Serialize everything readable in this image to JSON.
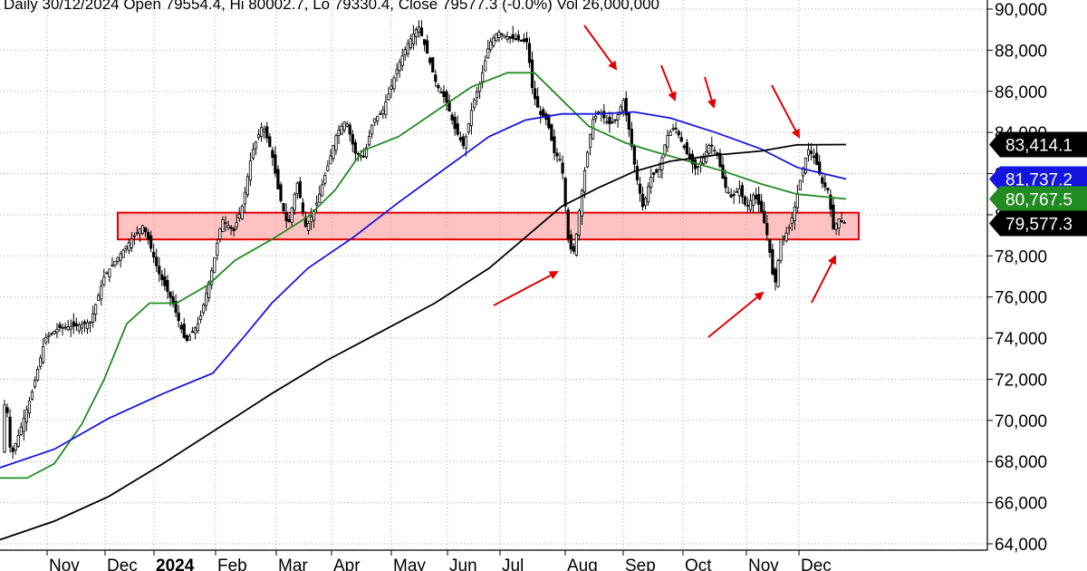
{
  "header": {
    "text": "Daily 30/12/2024 Open 79554.4, Hi 80002.7, Lo 79330.4, Close 79577.3 (-0.0%) Vol 26,000,000",
    "accent": "#008000"
  },
  "chart_data": {
    "type": "candlestick",
    "ylim": [
      63500,
      90500
    ],
    "y_ticks": [
      {
        "value": 64000,
        "label": "64,000"
      },
      {
        "value": 66000,
        "label": "66,000"
      },
      {
        "value": 68000,
        "label": "68,000"
      },
      {
        "value": 70000,
        "label": "70,000"
      },
      {
        "value": 72000,
        "label": "72,000"
      },
      {
        "value": 74000,
        "label": "74,000"
      },
      {
        "value": 76000,
        "label": "76,000"
      },
      {
        "value": 78000,
        "label": "78,000"
      },
      {
        "value": 80000,
        "label": "80,000"
      },
      {
        "value": 82000,
        "label": "82,000"
      },
      {
        "value": 84000,
        "label": "84,000"
      },
      {
        "value": 86000,
        "label": "86,000"
      },
      {
        "value": 88000,
        "label": "88,000"
      },
      {
        "value": 90000,
        "label": "90,000"
      }
    ],
    "x_ticks": [
      {
        "label": "Nov",
        "bold": false
      },
      {
        "label": "Dec",
        "bold": false
      },
      {
        "label": "2024",
        "bold": true
      },
      {
        "label": "Feb",
        "bold": false
      },
      {
        "label": "Mar",
        "bold": false
      },
      {
        "label": "Apr",
        "bold": false
      },
      {
        "label": "May",
        "bold": false
      },
      {
        "label": "Jun",
        "bold": false
      },
      {
        "label": "Jul",
        "bold": false
      },
      {
        "label": "Aug",
        "bold": false
      },
      {
        "label": "Sep",
        "bold": false
      },
      {
        "label": "Oct",
        "bold": false
      },
      {
        "label": "Nov",
        "bold": false
      },
      {
        "label": "Dec",
        "bold": false
      }
    ],
    "price_path": [
      [
        0,
        67000
      ],
      [
        6,
        71500
      ],
      [
        12,
        68200
      ],
      [
        22,
        69500
      ],
      [
        35,
        71300
      ],
      [
        50,
        74000
      ],
      [
        65,
        74500
      ],
      [
        85,
        74600
      ],
      [
        100,
        74800
      ],
      [
        115,
        77000
      ],
      [
        128,
        77800
      ],
      [
        145,
        78800
      ],
      [
        158,
        79500
      ],
      [
        165,
        78600
      ],
      [
        175,
        77200
      ],
      [
        190,
        75800
      ],
      [
        205,
        73800
      ],
      [
        220,
        74800
      ],
      [
        235,
        77500
      ],
      [
        245,
        79800
      ],
      [
        258,
        79200
      ],
      [
        268,
        80500
      ],
      [
        278,
        83000
      ],
      [
        290,
        84400
      ],
      [
        300,
        83000
      ],
      [
        308,
        81000
      ],
      [
        318,
        79400
      ],
      [
        328,
        81600
      ],
      [
        338,
        79300
      ],
      [
        350,
        80600
      ],
      [
        362,
        82400
      ],
      [
        372,
        84000
      ],
      [
        382,
        84600
      ],
      [
        392,
        83000
      ],
      [
        402,
        82800
      ],
      [
        412,
        84600
      ],
      [
        422,
        85000
      ],
      [
        430,
        86000
      ],
      [
        440,
        87300
      ],
      [
        450,
        88300
      ],
      [
        462,
        89200
      ],
      [
        472,
        87800
      ],
      [
        482,
        86300
      ],
      [
        492,
        85600
      ],
      [
        502,
        84200
      ],
      [
        512,
        83300
      ],
      [
        522,
        85400
      ],
      [
        530,
        86400
      ],
      [
        540,
        88300
      ],
      [
        550,
        88900
      ],
      [
        562,
        88600
      ],
      [
        572,
        88500
      ],
      [
        582,
        88400
      ],
      [
        588,
        86000
      ],
      [
        596,
        84900
      ],
      [
        604,
        84600
      ],
      [
        612,
        83000
      ],
      [
        620,
        82600
      ],
      [
        628,
        78400
      ],
      [
        634,
        78200
      ],
      [
        640,
        80400
      ],
      [
        646,
        82300
      ],
      [
        654,
        84600
      ],
      [
        662,
        85000
      ],
      [
        672,
        84400
      ],
      [
        680,
        84600
      ],
      [
        688,
        85600
      ],
      [
        695,
        84000
      ],
      [
        702,
        82000
      ],
      [
        710,
        80300
      ],
      [
        718,
        81800
      ],
      [
        728,
        82200
      ],
      [
        736,
        83800
      ],
      [
        745,
        84300
      ],
      [
        752,
        83600
      ],
      [
        760,
        82800
      ],
      [
        768,
        82200
      ],
      [
        776,
        82700
      ],
      [
        784,
        83500
      ],
      [
        792,
        82900
      ],
      [
        800,
        81400
      ],
      [
        808,
        80800
      ],
      [
        816,
        81300
      ],
      [
        824,
        80300
      ],
      [
        832,
        81000
      ],
      [
        840,
        80300
      ],
      [
        848,
        78800
      ],
      [
        855,
        76400
      ],
      [
        862,
        78800
      ],
      [
        870,
        79200
      ],
      [
        876,
        80100
      ],
      [
        884,
        81800
      ],
      [
        892,
        83200
      ],
      [
        900,
        82700
      ],
      [
        908,
        81500
      ],
      [
        914,
        81200
      ],
      [
        920,
        79300
      ],
      [
        926,
        79800
      ],
      [
        934,
        79577
      ]
    ],
    "series": [
      {
        "name": "",
        "color": "#228B22",
        "points": [
          [
            0,
            67200
          ],
          [
            30,
            67200
          ],
          [
            60,
            67900
          ],
          [
            90,
            69800
          ],
          [
            115,
            72000
          ],
          [
            140,
            74700
          ],
          [
            165,
            75700
          ],
          [
            195,
            75700
          ],
          [
            230,
            76600
          ],
          [
            260,
            77800
          ],
          [
            300,
            78800
          ],
          [
            340,
            79900
          ],
          [
            370,
            81200
          ],
          [
            400,
            83100
          ],
          [
            440,
            83800
          ],
          [
            480,
            85000
          ],
          [
            520,
            86200
          ],
          [
            560,
            86900
          ],
          [
            590,
            86900
          ],
          [
            620,
            85600
          ],
          [
            650,
            84300
          ],
          [
            690,
            83500
          ],
          [
            720,
            83100
          ],
          [
            760,
            82600
          ],
          [
            800,
            82100
          ],
          [
            840,
            81500
          ],
          [
            880,
            81000
          ],
          [
            934,
            80767
          ]
        ]
      },
      {
        "name": "",
        "color": "#1515e0",
        "points": [
          [
            0,
            67700
          ],
          [
            60,
            68600
          ],
          [
            120,
            70100
          ],
          [
            180,
            71300
          ],
          [
            235,
            72300
          ],
          [
            270,
            74100
          ],
          [
            300,
            75700
          ],
          [
            340,
            77400
          ],
          [
            390,
            78900
          ],
          [
            440,
            80600
          ],
          [
            490,
            82200
          ],
          [
            540,
            83800
          ],
          [
            580,
            84600
          ],
          [
            620,
            84900
          ],
          [
            660,
            84900
          ],
          [
            700,
            85000
          ],
          [
            740,
            84700
          ],
          [
            790,
            84000
          ],
          [
            840,
            83200
          ],
          [
            880,
            82300
          ],
          [
            934,
            81737
          ]
        ]
      },
      {
        "name": "",
        "color": "#000000",
        "points": [
          [
            0,
            64200
          ],
          [
            60,
            65100
          ],
          [
            120,
            66300
          ],
          [
            180,
            67900
          ],
          [
            240,
            69600
          ],
          [
            300,
            71300
          ],
          [
            360,
            72900
          ],
          [
            420,
            74300
          ],
          [
            480,
            75700
          ],
          [
            540,
            77400
          ],
          [
            580,
            78900
          ],
          [
            620,
            80400
          ],
          [
            660,
            81300
          ],
          [
            700,
            82100
          ],
          [
            740,
            82600
          ],
          [
            790,
            82900
          ],
          [
            840,
            83100
          ],
          [
            880,
            83400
          ],
          [
            934,
            83414
          ]
        ]
      }
    ],
    "support_zone": {
      "low": 78800,
      "high": 80100,
      "x_start": 130,
      "x_end": 948
    },
    "value_tags": [
      {
        "value": 83414,
        "label": "83,414.1",
        "bg": "#000000",
        "fg": "#ffffff"
      },
      {
        "value": 81737,
        "label": "81,737.2",
        "bg": "#1515e0",
        "fg": "#ffffff"
      },
      {
        "value": 80767,
        "label": "80,767.5",
        "bg": "#228B22",
        "fg": "#ffffff"
      },
      {
        "value": 79577,
        "label": "79,577.3",
        "bg": "#000000",
        "fg": "#ffffff"
      }
    ]
  }
}
